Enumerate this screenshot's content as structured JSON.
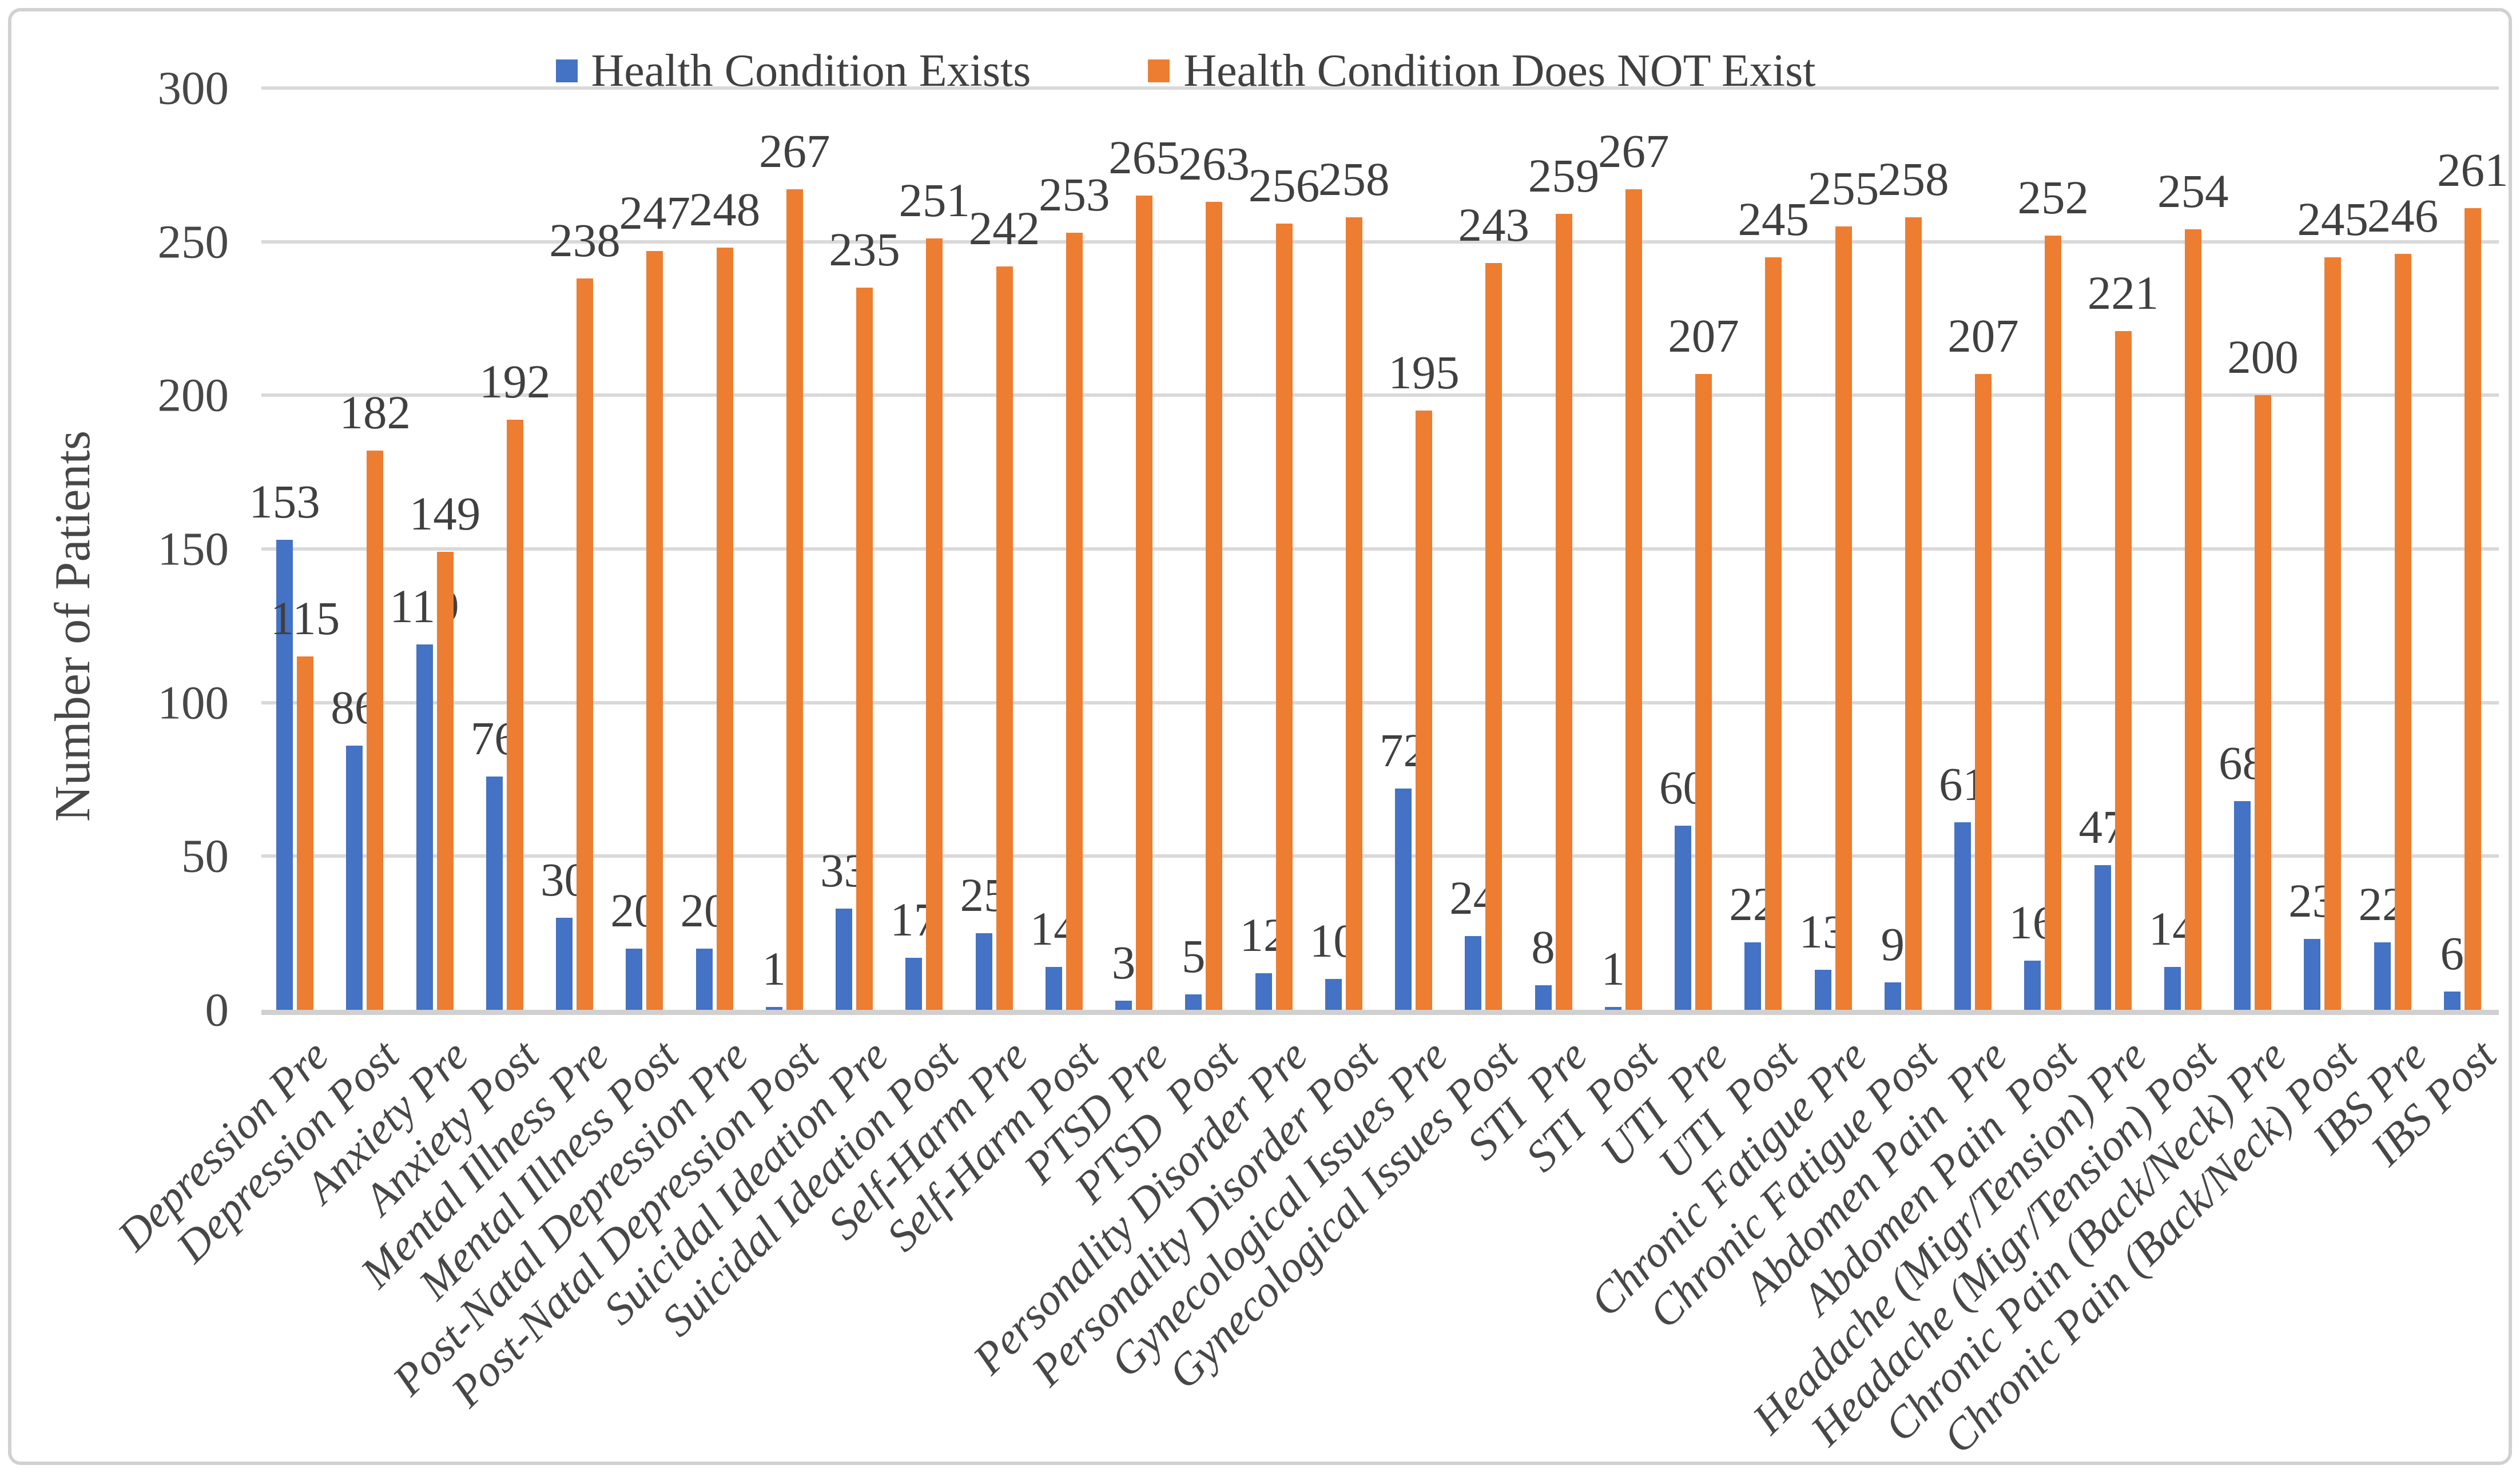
{
  "chart_data": {
    "type": "bar",
    "title": "",
    "xlabel": "",
    "ylabel": "Number of Patients",
    "ylim": [
      0,
      300
    ],
    "y_ticks": [
      0,
      50,
      100,
      150,
      200,
      250,
      300
    ],
    "grid": true,
    "legend_position": "top",
    "categories": [
      "Depression Pre",
      "Depression Post",
      "Anxiety Pre",
      "Anxiety Post",
      "Mental Illness Pre",
      "Mental Illness Post",
      "Post-Natal Depression Pre",
      "Post-Natal Depression Post",
      "Suicidal Ideation Pre",
      "Suicidal Ideation Post",
      "Self-Harm Pre",
      "Self-Harm Post",
      "PTSD Pre",
      "PTSD  Post",
      "Personality Disorder Pre",
      "Personality Disorder Post",
      "Gynecological Issues Pre",
      "Gynecological Issues Post",
      "STI  Pre",
      "STI  Post",
      "UTI  Pre",
      "UTI  Post",
      "Chronic Fatigue Pre",
      "Chronic Fatigue Post",
      "Abdomen Pain  Pre",
      "Abdomen Pain  Post",
      "Headache (Migr/Tension) Pre",
      "Headache (Migr/Tension) Post",
      "Chronic Pain (Back/Neck) Pre",
      "Chronic Pain (Back/Neck) Post",
      "IBS Pre",
      "IBS Post"
    ],
    "series": [
      {
        "name": "Health Condition Exists",
        "color": "#4472C4",
        "values": [
          153,
          86,
          119,
          76,
          30,
          20,
          20,
          1,
          33,
          17,
          25,
          14,
          3,
          5,
          12,
          10,
          72,
          24,
          8,
          1,
          60,
          22,
          13,
          9,
          61,
          16,
          47,
          14,
          68,
          23,
          22,
          6
        ]
      },
      {
        "name": "Health Condition Does NOT Exist",
        "color": "#ED7D31",
        "values": [
          115,
          182,
          149,
          192,
          238,
          247,
          248,
          267,
          235,
          251,
          242,
          253,
          265,
          263,
          256,
          258,
          195,
          243,
          259,
          267,
          207,
          245,
          255,
          258,
          207,
          252,
          221,
          254,
          200,
          245,
          246,
          261
        ]
      }
    ],
    "colors": {
      "grid": "#D9D9D9",
      "axis_line": "#D0D0D0",
      "label_text": "#404040",
      "tick_text": "#474747"
    }
  }
}
